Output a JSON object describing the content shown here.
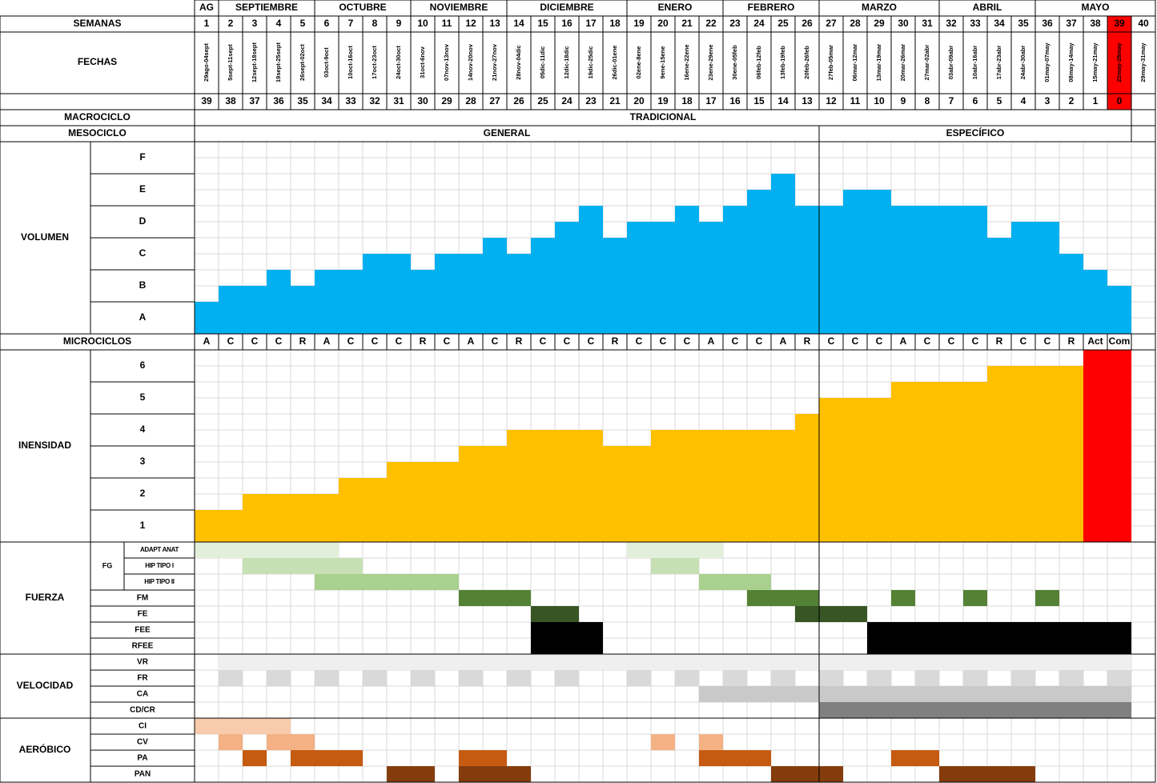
{
  "header": {
    "weeks_label": "SEMANAS",
    "dates_label": "FECHAS",
    "months": [
      {
        "name": "AG",
        "span": 1
      },
      {
        "name": "SEPTIEMBRE",
        "span": 4
      },
      {
        "name": "OCTUBRE",
        "span": 4
      },
      {
        "name": "NOVIEMBRE",
        "span": 4
      },
      {
        "name": "DICIEMBRE",
        "span": 5
      },
      {
        "name": "ENERO",
        "span": 4
      },
      {
        "name": "FEBRERO",
        "span": 4
      },
      {
        "name": "MARZO",
        "span": 5
      },
      {
        "name": "ABRIL",
        "span": 4
      },
      {
        "name": "MAYO",
        "span": 5
      }
    ],
    "weeks": [
      1,
      2,
      3,
      4,
      5,
      6,
      7,
      8,
      9,
      10,
      11,
      12,
      13,
      14,
      15,
      16,
      17,
      18,
      19,
      20,
      21,
      22,
      23,
      24,
      25,
      26,
      27,
      28,
      29,
      30,
      31,
      32,
      33,
      34,
      35,
      36,
      37,
      38,
      39,
      40
    ],
    "dates": [
      "29ago-04sept",
      "5sept-11sept",
      "12sept-18sept",
      "19sept-25sept",
      "26sept-02oct",
      "03oct-9oct",
      "10oct-16oct",
      "17oct-23oct",
      "24oct-30oct",
      "31oct-6nov",
      "07nov-13nov",
      "14nov-20nov",
      "21nov-27nov",
      "28nov-04dic",
      "05dic-11dic",
      "12dic-18dic",
      "19dic-25dic",
      "26dic-01ene",
      "02ene-8ene",
      "9ene-15ene",
      "16ene-22ene",
      "23ene-29ene",
      "30ene-05feb",
      "06feb-12feb",
      "13feb-19feb",
      "20feb-26feb",
      "27feb-05mar",
      "06mar-12mar",
      "13mar-19mar",
      "20mar-26mar",
      "27mar-02abr",
      "03abr-09abr",
      "10abr-16abr",
      "17abr-23abr",
      "24abr-30abr",
      "01may-07may",
      "08may-14may",
      "15may-21may",
      "22may-28may",
      "29may-31may"
    ],
    "countdown": [
      39,
      38,
      37,
      36,
      35,
      34,
      33,
      32,
      31,
      30,
      29,
      28,
      27,
      26,
      25,
      24,
      23,
      21,
      20,
      19,
      18,
      17,
      16,
      15,
      14,
      13,
      12,
      11,
      10,
      9,
      8,
      7,
      6,
      5,
      4,
      3,
      2,
      1,
      0,
      null
    ],
    "highlight_week": 39,
    "highlight_color": "#ff0000"
  },
  "macrocycle": {
    "label": "MACROCICLO",
    "phases": [
      {
        "name": "TRADICIONAL",
        "span": 39
      }
    ]
  },
  "mesocycle": {
    "label": "MESOCICLO",
    "phases": [
      {
        "name": "GENERAL",
        "span": 26
      },
      {
        "name": "ESPECÍFICO",
        "span": 13
      }
    ]
  },
  "volume": {
    "label": "VOLUMEN",
    "ylim": [
      0,
      6
    ],
    "yticks": [
      {
        "value": 6,
        "label": "F"
      },
      {
        "value": 5,
        "label": "E"
      },
      {
        "value": 4,
        "label": "D"
      },
      {
        "value": 3,
        "label": "C"
      },
      {
        "value": 2,
        "label": "B"
      },
      {
        "value": 1,
        "label": "A"
      }
    ],
    "color": "#00b0f0",
    "values": [
      1,
      1.5,
      1.5,
      2,
      1.5,
      2,
      2,
      2.5,
      2.5,
      2,
      2.5,
      2.5,
      3,
      2.5,
      3,
      3.5,
      4,
      3,
      3.5,
      3.5,
      4,
      3.5,
      4,
      4.5,
      5,
      4,
      4,
      4.5,
      4.5,
      4,
      4,
      4,
      4,
      3,
      3.5,
      3.5,
      2.5,
      2,
      1.5,
      null
    ]
  },
  "microcycles": {
    "label": "MICROCICLOS",
    "values": [
      "A",
      "C",
      "C",
      "C",
      "R",
      "A",
      "C",
      "C",
      "C",
      "R",
      "C",
      "A",
      "C",
      "R",
      "C",
      "C",
      "C",
      "R",
      "C",
      "C",
      "C",
      "A",
      "C",
      "C",
      "A",
      "R",
      "C",
      "C",
      "C",
      "A",
      "C",
      "C",
      "C",
      "R",
      "C",
      "C",
      "R",
      "Act",
      "Com",
      null
    ]
  },
  "intensity": {
    "label": "INENSIDAD",
    "ylim": [
      0,
      6
    ],
    "yticks": [
      6,
      5,
      4,
      3,
      2,
      1
    ],
    "series": [
      {
        "color": "#ffc000",
        "values": [
          1,
          1,
          1.5,
          1.5,
          1.5,
          1.5,
          2,
          2,
          2.5,
          2.5,
          2.5,
          3,
          3,
          3.5,
          3.5,
          3.5,
          3.5,
          3,
          3,
          3.5,
          3.5,
          3.5,
          3.5,
          3.5,
          3.5,
          4,
          4.5,
          4.5,
          4.5,
          5,
          5,
          5,
          5,
          5.5,
          5.5,
          5.5,
          5.5,
          null,
          null,
          null
        ]
      },
      {
        "color": "#ff0000",
        "values": [
          null,
          null,
          null,
          null,
          null,
          null,
          null,
          null,
          null,
          null,
          null,
          null,
          null,
          null,
          null,
          null,
          null,
          null,
          null,
          null,
          null,
          null,
          null,
          null,
          null,
          null,
          null,
          null,
          null,
          null,
          null,
          null,
          null,
          null,
          null,
          null,
          null,
          6,
          6,
          null
        ]
      }
    ]
  },
  "sections": [
    {
      "label": "FUERZA",
      "groups": [
        {
          "label": "FG",
          "rows": [
            {
              "name": "ADAPT ANAT",
              "color": "#e2efda",
              "spans": [
                [
                  1,
                  6
                ],
                [
                  19,
                  22
                ]
              ]
            },
            {
              "name": "HIP TIPO I",
              "color": "#c6e0b4",
              "spans": [
                [
                  3,
                  7
                ],
                [
                  20,
                  21
                ]
              ]
            },
            {
              "name": "HIP TIPO II",
              "color": "#a9d08e",
              "spans": [
                [
                  6,
                  11
                ],
                [
                  22,
                  24
                ]
              ]
            }
          ]
        },
        {
          "rows": [
            {
              "name": "FM",
              "color": "#548235",
              "spans": [
                [
                  12,
                  14
                ],
                [
                  24,
                  26
                ],
                [
                  30,
                  30
                ],
                [
                  33,
                  33
                ],
                [
                  36,
                  36
                ]
              ]
            },
            {
              "name": "FE",
              "color": "#375623",
              "spans": [
                [
                  15,
                  16
                ],
                [
                  26,
                  26
                ],
                [
                  27,
                  28
                ]
              ]
            },
            {
              "name": "FEE",
              "color": "#000000",
              "spans": [
                [
                  15,
                  17
                ],
                [
                  29,
                  39
                ]
              ]
            },
            {
              "name": "RFEE",
              "color": "#000000",
              "spans": [
                [
                  15,
                  17
                ],
                [
                  29,
                  39
                ]
              ]
            }
          ]
        }
      ]
    },
    {
      "label": "VELOCIDAD",
      "groups": [
        {
          "rows": [
            {
              "name": "VR",
              "color": "#efefef",
              "spans": [
                [
                  2,
                  39
                ]
              ]
            },
            {
              "name": "FR",
              "color": "#d9d9d9",
              "spans": [
                [
                  2,
                  2
                ],
                [
                  4,
                  4
                ],
                [
                  6,
                  6
                ],
                [
                  8,
                  8
                ],
                [
                  10,
                  10
                ],
                [
                  12,
                  12
                ],
                [
                  14,
                  14
                ],
                [
                  16,
                  16
                ],
                [
                  19,
                  19
                ],
                [
                  21,
                  21
                ],
                [
                  23,
                  23
                ],
                [
                  25,
                  25
                ],
                [
                  27,
                  27
                ],
                [
                  29,
                  29
                ],
                [
                  31,
                  31
                ],
                [
                  33,
                  33
                ],
                [
                  35,
                  35
                ],
                [
                  37,
                  37
                ],
                [
                  39,
                  39
                ]
              ]
            },
            {
              "name": "CA",
              "color": "#c9c9c9",
              "spans": [
                [
                  22,
                  39
                ]
              ]
            },
            {
              "name": "CD/CR",
              "color": "#808080",
              "spans": [
                [
                  27,
                  39
                ]
              ]
            }
          ]
        }
      ]
    },
    {
      "label": "AERÓBICO",
      "groups": [
        {
          "rows": [
            {
              "name": "CI",
              "color": "#f8cbad",
              "spans": [
                [
                  1,
                  4
                ]
              ]
            },
            {
              "name": "CV",
              "color": "#f4b183",
              "spans": [
                [
                  2,
                  2
                ],
                [
                  4,
                  5
                ],
                [
                  20,
                  20
                ],
                [
                  22,
                  22
                ]
              ]
            },
            {
              "name": "PA",
              "color": "#c55a11",
              "spans": [
                [
                  3,
                  3
                ],
                [
                  5,
                  7
                ],
                [
                  12,
                  13
                ],
                [
                  22,
                  24
                ],
                [
                  30,
                  31
                ]
              ]
            },
            {
              "name": "PAN",
              "color": "#843c0c",
              "spans": [
                [
                  9,
                  10
                ],
                [
                  12,
                  14
                ],
                [
                  25,
                  27
                ],
                [
                  32,
                  35
                ]
              ]
            }
          ]
        }
      ]
    }
  ]
}
